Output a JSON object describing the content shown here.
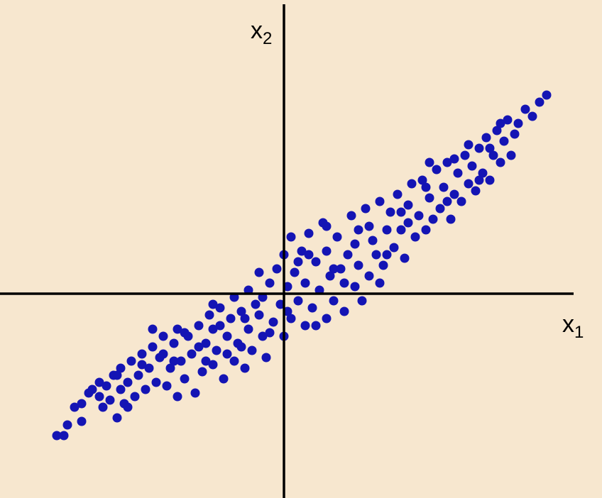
{
  "colors": {
    "background": "#f7e7cf",
    "axis": "#000000",
    "point": "#1414b4"
  },
  "chart_data": {
    "type": "scatter",
    "title": "",
    "xlabel": "x",
    "xlabel_subscript": "1",
    "ylabel": "x",
    "ylabel_subscript": "2",
    "grid": false,
    "legend": "none",
    "xlim": [
      -4.0,
      4.1
    ],
    "ylim": [
      -2.9,
      4.1
    ],
    "series": [
      {
        "points": [
          [
            -3.2,
            -2.0
          ],
          [
            -3.1,
            -2.0
          ],
          [
            -3.05,
            -1.85
          ],
          [
            -2.95,
            -1.6
          ],
          [
            -2.85,
            -1.55
          ],
          [
            -2.75,
            -1.4
          ],
          [
            -2.7,
            -1.35
          ],
          [
            -2.6,
            -1.25
          ],
          [
            -2.55,
            -1.6
          ],
          [
            -2.5,
            -1.3
          ],
          [
            -2.45,
            -1.5
          ],
          [
            -2.4,
            -1.15
          ],
          [
            -2.35,
            -1.75
          ],
          [
            -2.3,
            -1.35
          ],
          [
            -2.3,
            -1.05
          ],
          [
            -2.25,
            -1.55
          ],
          [
            -2.2,
            -1.25
          ],
          [
            -2.15,
            -0.95
          ],
          [
            -2.1,
            -1.45
          ],
          [
            -2.05,
            -1.15
          ],
          [
            -2.0,
            -0.85
          ],
          [
            -1.95,
            -1.35
          ],
          [
            -1.9,
            -1.05
          ],
          [
            -1.85,
            -0.75
          ],
          [
            -1.8,
            -1.25
          ],
          [
            -1.75,
            -0.9
          ],
          [
            -1.7,
            -0.6
          ],
          [
            -1.65,
            -1.3
          ],
          [
            -1.6,
            -1.05
          ],
          [
            -1.55,
            -0.7
          ],
          [
            -1.5,
            -1.45
          ],
          [
            -1.5,
            -0.5
          ],
          [
            -1.45,
            -0.95
          ],
          [
            -1.4,
            -1.2
          ],
          [
            -1.35,
            -0.6
          ],
          [
            -1.3,
            -0.85
          ],
          [
            -1.25,
            -1.4
          ],
          [
            -1.2,
            -0.45
          ],
          [
            -1.15,
            -1.1
          ],
          [
            -1.1,
            -0.7
          ],
          [
            -1.05,
            -0.3
          ],
          [
            -1.0,
            -1.0
          ],
          [
            -1.0,
            -0.5
          ],
          [
            -0.95,
            -0.8
          ],
          [
            -0.9,
            -0.2
          ],
          [
            -0.85,
            -1.2
          ],
          [
            -0.8,
            -0.6
          ],
          [
            -0.75,
            -0.35
          ],
          [
            -0.7,
            -0.95
          ],
          [
            -0.7,
            -0.05
          ],
          [
            -0.65,
            -0.7
          ],
          [
            -0.6,
            -0.25
          ],
          [
            -0.55,
            -1.05
          ],
          [
            -0.5,
            -0.5
          ],
          [
            -0.5,
            0.05
          ],
          [
            -0.45,
            -0.8
          ],
          [
            -0.4,
            -0.15
          ],
          [
            -0.35,
            0.3
          ],
          [
            -0.3,
            -0.6
          ],
          [
            -0.3,
            -0.05
          ],
          [
            -0.25,
            -0.9
          ],
          [
            -0.2,
            0.15
          ],
          [
            -0.15,
            -0.4
          ],
          [
            -0.1,
            0.35
          ],
          [
            -0.05,
            -0.15
          ],
          [
            0.0,
            0.55
          ],
          [
            0.0,
            -0.6
          ],
          [
            0.05,
            0.1
          ],
          [
            0.1,
            0.8
          ],
          [
            0.1,
            -0.35
          ],
          [
            0.15,
            0.3
          ],
          [
            0.2,
            -0.1
          ],
          [
            0.25,
            0.6
          ],
          [
            0.3,
            -0.45
          ],
          [
            0.3,
            0.15
          ],
          [
            0.35,
            0.85
          ],
          [
            0.4,
            -0.2
          ],
          [
            0.45,
            0.45
          ],
          [
            0.5,
            0.05
          ],
          [
            0.55,
            1.0
          ],
          [
            0.6,
            -0.35
          ],
          [
            0.6,
            0.6
          ],
          [
            0.65,
            0.25
          ],
          [
            0.7,
            -0.1
          ],
          [
            0.75,
            0.8
          ],
          [
            0.8,
            0.35
          ],
          [
            0.85,
            -0.25
          ],
          [
            0.9,
            0.55
          ],
          [
            0.95,
            1.1
          ],
          [
            1.0,
            0.1
          ],
          [
            1.0,
            0.7
          ],
          [
            1.05,
            0.4
          ],
          [
            1.1,
            -0.1
          ],
          [
            1.15,
            1.2
          ],
          [
            1.2,
            0.25
          ],
          [
            1.25,
            0.75
          ],
          [
            1.3,
            0.55
          ],
          [
            1.35,
            1.3
          ],
          [
            1.4,
            0.4
          ],
          [
            1.45,
            0.9
          ],
          [
            1.5,
            1.15
          ],
          [
            1.55,
            0.65
          ],
          [
            1.6,
            1.4
          ],
          [
            1.65,
            0.9
          ],
          [
            1.7,
            0.5
          ],
          [
            1.75,
            1.25
          ],
          [
            1.8,
            1.55
          ],
          [
            1.85,
            0.8
          ],
          [
            1.9,
            1.1
          ],
          [
            1.95,
            1.6
          ],
          [
            2.0,
            0.9
          ],
          [
            2.05,
            1.35
          ],
          [
            2.1,
            1.05
          ],
          [
            2.15,
            1.75
          ],
          [
            2.2,
            1.2
          ],
          [
            2.25,
            1.5
          ],
          [
            2.3,
            1.85
          ],
          [
            2.35,
            1.05
          ],
          [
            2.4,
            1.4
          ],
          [
            2.45,
            1.7
          ],
          [
            2.5,
            1.3
          ],
          [
            2.55,
            1.95
          ],
          [
            2.6,
            1.55
          ],
          [
            2.65,
            1.8
          ],
          [
            2.7,
            1.45
          ],
          [
            2.75,
            2.05
          ],
          [
            2.8,
            1.7
          ],
          [
            2.85,
            2.2
          ],
          [
            2.9,
            1.6
          ],
          [
            2.95,
            1.95
          ],
          [
            3.0,
            2.3
          ],
          [
            3.05,
            1.85
          ],
          [
            3.1,
            2.15
          ],
          [
            3.15,
            2.45
          ],
          [
            3.2,
            1.95
          ],
          [
            3.3,
            2.4
          ],
          [
            3.4,
            2.6
          ],
          [
            3.5,
            2.5
          ],
          [
            3.6,
            2.7
          ],
          [
            3.7,
            2.8
          ],
          [
            -2.6,
            -1.45
          ],
          [
            -2.35,
            -1.15
          ],
          [
            -2.0,
            -1.0
          ],
          [
            -1.7,
            -0.85
          ],
          [
            -1.4,
            -0.55
          ],
          [
            -1.1,
            -0.95
          ],
          [
            -0.8,
            -0.85
          ],
          [
            -0.55,
            -0.35
          ],
          [
            -0.2,
            -0.55
          ],
          [
            0.2,
            0.45
          ],
          [
            0.45,
            -0.45
          ],
          [
            0.7,
            0.35
          ],
          [
            1.05,
            0.9
          ],
          [
            1.35,
            0.15
          ],
          [
            1.65,
            1.15
          ],
          [
            2.0,
            1.5
          ],
          [
            2.3,
            1.3
          ],
          [
            2.6,
            2.1
          ],
          [
            2.9,
            2.05
          ],
          [
            3.25,
            2.25
          ],
          [
            -1.85,
            -0.5
          ],
          [
            -1.55,
            -0.95
          ],
          [
            -1.2,
            -0.75
          ],
          [
            -0.9,
            -0.45
          ],
          [
            -0.6,
            -0.75
          ],
          [
            -0.35,
            -0.3
          ],
          [
            0.05,
            -0.25
          ],
          [
            0.35,
            0.55
          ],
          [
            0.6,
            0.95
          ],
          [
            0.85,
            0.15
          ],
          [
            1.2,
            0.95
          ],
          [
            1.45,
            0.55
          ],
          [
            1.75,
            1.0
          ],
          [
            2.05,
            1.85
          ],
          [
            2.4,
            1.9
          ],
          [
            2.75,
            1.6
          ],
          [
            3.05,
            2.4
          ],
          [
            -2.85,
            -1.8
          ],
          [
            -2.2,
            -1.6
          ],
          [
            -1.0,
            -0.15
          ]
        ]
      }
    ]
  }
}
